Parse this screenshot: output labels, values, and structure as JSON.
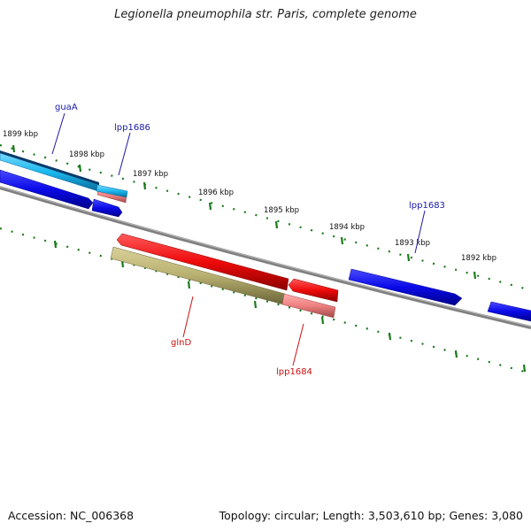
{
  "title": "Legionella pneumophila str. Paris, complete genome",
  "footer": {
    "accession": "Accession: NC_006368",
    "summary": "Topology: circular; Length: 3,503,610 bp; Genes: 3,080"
  },
  "ticks": [
    "1899 kbp",
    "1898 kbp",
    "1897 kbp",
    "1896 kbp",
    "1895 kbp",
    "1894 kbp",
    "1893 kbp",
    "1892 kbp"
  ],
  "genes": {
    "guaA": "guaA",
    "lpp1686": "lpp1686",
    "lpp1683": "lpp1683",
    "glnD": "glnD",
    "lpp1684": "lpp1684"
  },
  "colors": {
    "forward_label": "#1a1aa6",
    "reverse_label": "#cc1111",
    "cds_blue": "#0a0ae8",
    "cds_cyan": "#1ab8ee",
    "cds_red": "#ee0a0a",
    "cds_pink": "#ee8080",
    "cds_olive": "#b8b070",
    "backbone": "#808080",
    "tick_green": "#1a7a1a"
  }
}
